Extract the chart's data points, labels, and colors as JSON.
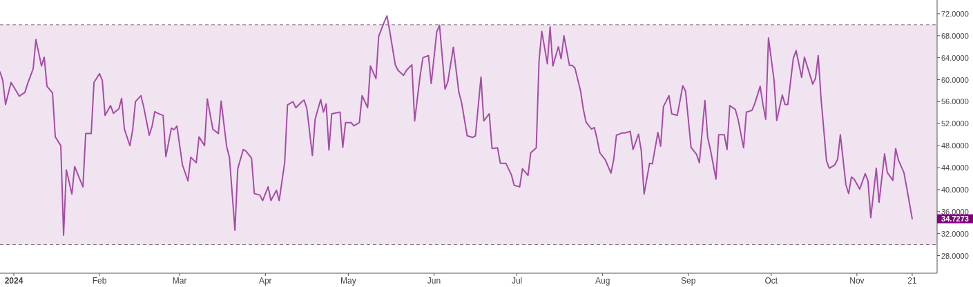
{
  "chart_data": {
    "type": "line",
    "xlim": [
      "2023-12-27",
      "2024-11-30"
    ],
    "ylim": [
      24.8,
      74.5
    ],
    "xticks": [
      {
        "value": "2024-01-01",
        "label": "2024"
      },
      {
        "value": "2024-02-01",
        "label": "Feb"
      },
      {
        "value": "2024-03-01",
        "label": "Mar"
      },
      {
        "value": "2024-04-01",
        "label": "Apr"
      },
      {
        "value": "2024-05-01",
        "label": "May"
      },
      {
        "value": "2024-06-01",
        "label": "Jun"
      },
      {
        "value": "2024-07-01",
        "label": "Jul"
      },
      {
        "value": "2024-08-01",
        "label": "Aug"
      },
      {
        "value": "2024-09-01",
        "label": "Sep"
      },
      {
        "value": "2024-10-01",
        "label": "Oct"
      },
      {
        "value": "2024-11-01",
        "label": "Nov"
      },
      {
        "value": "2024-11-21",
        "label": "21"
      }
    ],
    "yticks": [
      {
        "value": 28,
        "label": "28.0000"
      },
      {
        "value": 32,
        "label": "32.0000"
      },
      {
        "value": 36,
        "label": "36.0000"
      },
      {
        "value": 40,
        "label": "40.0000"
      },
      {
        "value": 44,
        "label": "44.0000"
      },
      {
        "value": 48,
        "label": "48.0000"
      },
      {
        "value": 52,
        "label": "52.0000"
      },
      {
        "value": 56,
        "label": "56.0000"
      },
      {
        "value": 60,
        "label": "60.0000"
      },
      {
        "value": 64,
        "label": "64.0000"
      },
      {
        "value": 68,
        "label": "68.0000"
      },
      {
        "value": 72,
        "label": "72.0000"
      }
    ],
    "grid": false,
    "marker": "none",
    "line_style": "solid",
    "bands": [
      {
        "axis": "y",
        "from": 30,
        "to": 70,
        "color": "#f0e4f1"
      }
    ],
    "ref_lines": [
      {
        "axis": "y",
        "value": 70,
        "color": "#7d6b80",
        "line_style": "dashed"
      },
      {
        "axis": "y",
        "value": 30,
        "color": "#7d6b80",
        "line_style": "dashed"
      }
    ],
    "annotations": [
      "34.7273"
    ],
    "series": [
      {
        "color": "#a64ca6",
        "x": [
          "2023-12-27",
          "2023-12-28",
          "2023-12-29",
          "2023-12-31",
          "2024-01-03",
          "2024-01-05",
          "2024-01-06",
          "2024-01-08",
          "2024-01-09",
          "2024-01-11",
          "2024-01-12",
          "2024-01-13",
          "2024-01-15",
          "2024-01-16",
          "2024-01-18",
          "2024-01-19",
          "2024-01-20",
          "2024-01-22",
          "2024-01-23",
          "2024-01-26",
          "2024-01-27",
          "2024-01-29",
          "2024-01-30",
          "2024-02-01",
          "2024-02-02",
          "2024-02-03",
          "2024-02-05",
          "2024-02-06",
          "2024-02-08",
          "2024-02-09",
          "2024-02-10",
          "2024-02-12",
          "2024-02-13",
          "2024-02-14",
          "2024-02-16",
          "2024-02-17",
          "2024-02-19",
          "2024-02-20",
          "2024-02-21",
          "2024-02-22",
          "2024-02-24",
          "2024-02-25",
          "2024-02-27",
          "2024-02-28",
          "2024-02-29",
          "2024-03-02",
          "2024-03-04",
          "2024-03-05",
          "2024-03-07",
          "2024-03-08",
          "2024-03-10",
          "2024-03-11",
          "2024-03-13",
          "2024-03-15",
          "2024-03-16",
          "2024-03-18",
          "2024-03-19",
          "2024-03-21",
          "2024-03-22",
          "2024-03-24",
          "2024-03-25",
          "2024-03-27",
          "2024-03-28",
          "2024-03-30",
          "2024-03-31",
          "2024-04-02",
          "2024-04-03",
          "2024-04-05",
          "2024-04-06",
          "2024-04-08",
          "2024-04-09",
          "2024-04-11",
          "2024-04-12",
          "2024-04-14",
          "2024-04-15",
          "2024-04-16",
          "2024-04-18",
          "2024-04-19",
          "2024-04-21",
          "2024-04-22",
          "2024-04-23",
          "2024-04-24",
          "2024-04-25",
          "2024-04-28",
          "2024-04-29",
          "2024-04-30",
          "2024-05-02",
          "2024-05-03",
          "2024-05-05",
          "2024-05-06",
          "2024-05-08",
          "2024-05-09",
          "2024-05-11",
          "2024-05-12",
          "2024-05-14",
          "2024-05-15",
          "2024-05-16",
          "2024-05-18",
          "2024-05-19",
          "2024-05-21",
          "2024-05-22",
          "2024-05-24",
          "2024-05-25",
          "2024-05-27",
          "2024-05-28",
          "2024-05-30",
          "2024-05-31",
          "2024-06-02",
          "2024-06-03",
          "2024-06-05",
          "2024-06-06",
          "2024-06-08",
          "2024-06-10",
          "2024-06-11",
          "2024-06-13",
          "2024-06-15",
          "2024-06-16",
          "2024-06-18",
          "2024-06-19",
          "2024-06-21",
          "2024-06-22",
          "2024-06-24",
          "2024-06-25",
          "2024-06-27",
          "2024-06-29",
          "2024-06-30",
          "2024-07-02",
          "2024-07-03",
          "2024-07-05",
          "2024-07-06",
          "2024-07-08",
          "2024-07-09",
          "2024-07-10",
          "2024-07-12",
          "2024-07-13",
          "2024-07-14",
          "2024-07-16",
          "2024-07-17",
          "2024-07-18",
          "2024-07-20",
          "2024-07-21",
          "2024-07-22",
          "2024-07-24",
          "2024-07-25",
          "2024-07-26",
          "2024-07-28",
          "2024-07-29",
          "2024-07-30",
          "2024-07-31",
          "2024-08-02",
          "2024-08-04",
          "2024-08-05",
          "2024-08-06",
          "2024-08-08",
          "2024-08-09",
          "2024-08-11",
          "2024-08-12",
          "2024-08-14",
          "2024-08-15",
          "2024-08-16",
          "2024-08-18",
          "2024-08-19",
          "2024-08-21",
          "2024-08-22",
          "2024-08-23",
          "2024-08-25",
          "2024-08-26",
          "2024-08-28",
          "2024-08-29",
          "2024-08-30",
          "2024-08-31",
          "2024-09-02",
          "2024-09-04",
          "2024-09-05",
          "2024-09-07",
          "2024-09-08",
          "2024-09-09",
          "2024-09-11",
          "2024-09-12",
          "2024-09-14",
          "2024-09-15",
          "2024-09-16",
          "2024-09-18",
          "2024-09-19",
          "2024-09-21",
          "2024-09-22",
          "2024-09-24",
          "2024-09-25",
          "2024-09-27",
          "2024-09-28",
          "2024-09-29",
          "2024-09-30",
          "2024-10-02",
          "2024-10-03",
          "2024-10-05",
          "2024-10-06",
          "2024-10-07",
          "2024-10-09",
          "2024-10-10",
          "2024-10-12",
          "2024-10-13",
          "2024-10-14",
          "2024-10-16",
          "2024-10-17",
          "2024-10-18",
          "2024-10-19",
          "2024-10-21",
          "2024-10-22",
          "2024-10-24",
          "2024-10-25",
          "2024-10-26",
          "2024-10-28",
          "2024-10-29",
          "2024-10-30",
          "2024-10-31",
          "2024-11-02",
          "2024-11-04",
          "2024-11-05",
          "2024-11-06",
          "2024-11-08",
          "2024-11-09",
          "2024-11-11",
          "2024-11-12",
          "2024-11-14",
          "2024-11-15",
          "2024-11-16",
          "2024-11-18",
          "2024-11-19",
          "2024-11-21"
        ],
        "values": [
          61.4,
          59.9,
          55.5,
          59.5,
          57.0,
          57.7,
          59.3,
          62.0,
          67.3,
          62.5,
          64.1,
          58.8,
          57.6,
          49.6,
          48.0,
          31.7,
          43.6,
          39.2,
          44.2,
          40.5,
          50.2,
          50.2,
          59.5,
          61.1,
          59.9,
          53.5,
          55.3,
          53.9,
          54.7,
          56.6,
          51.0,
          48.0,
          50.9,
          56.0,
          57.1,
          55.0,
          49.9,
          51.5,
          54.2,
          53.9,
          53.5,
          46.0,
          51.2,
          50.9,
          51.6,
          44.5,
          41.6,
          45.9,
          44.9,
          49.6,
          48.0,
          56.5,
          51.0,
          50.2,
          56.1,
          47.8,
          45.9,
          32.6,
          43.8,
          47.3,
          47.0,
          45.7,
          39.3,
          39.0,
          38.0,
          40.5,
          38.0,
          39.9,
          38.0,
          45.0,
          55.4,
          56.0,
          54.9,
          55.9,
          56.3,
          54.8,
          46.2,
          52.8,
          56.4,
          54.1,
          55.6,
          47.2,
          53.8,
          54.1,
          47.7,
          52.2,
          52.2,
          51.6,
          52.2,
          57.1,
          54.9,
          62.5,
          60.2,
          67.9,
          70.5,
          71.6,
          68.8,
          62.7,
          61.7,
          60.8,
          61.7,
          62.7,
          52.5,
          60.8,
          64.0,
          64.4,
          59.3,
          68.7,
          69.9,
          58.3,
          59.6,
          65.9,
          57.7,
          55.8,
          49.8,
          49.5,
          49.8,
          60.5,
          52.5,
          53.8,
          47.5,
          47.6,
          44.8,
          44.8,
          42.7,
          40.8,
          40.5,
          43.8,
          42.6,
          46.7,
          47.6,
          63.4,
          68.8,
          62.9,
          69.6,
          62.5,
          66.0,
          63.8,
          68.0,
          62.6,
          62.6,
          62.1,
          58.0,
          54.7,
          52.3,
          51.0,
          51.3,
          49.2,
          46.7,
          45.4,
          43.0,
          45.4,
          49.9,
          50.3,
          50.3,
          50.6,
          47.3,
          50.1,
          47.0,
          39.2,
          44.8,
          44.7,
          50.4,
          47.9,
          55.1,
          57.1,
          53.8,
          53.5,
          56.2,
          58.9,
          57.9,
          47.7,
          46.4,
          44.9,
          56.2,
          49.5,
          47.3,
          41.9,
          50.0,
          50.0,
          47.3,
          55.3,
          54.6,
          52.8,
          47.6,
          54.1,
          54.4,
          55.6,
          58.8,
          55.5,
          52.8,
          67.6,
          60.0,
          52.6,
          57.2,
          55.5,
          55.5,
          63.9,
          65.3,
          60.4,
          64.1,
          62.5,
          59.2,
          60.2,
          64.4,
          56.7,
          45.2,
          43.9,
          44.5,
          45.5,
          50.0,
          40.9,
          39.3,
          42.3,
          41.9,
          40.1,
          42.9,
          41.6,
          34.9,
          43.9,
          37.7,
          46.5,
          43.1,
          41.7,
          47.5,
          45.4,
          43.1,
          40.4,
          34.7
        ]
      }
    ]
  }
}
